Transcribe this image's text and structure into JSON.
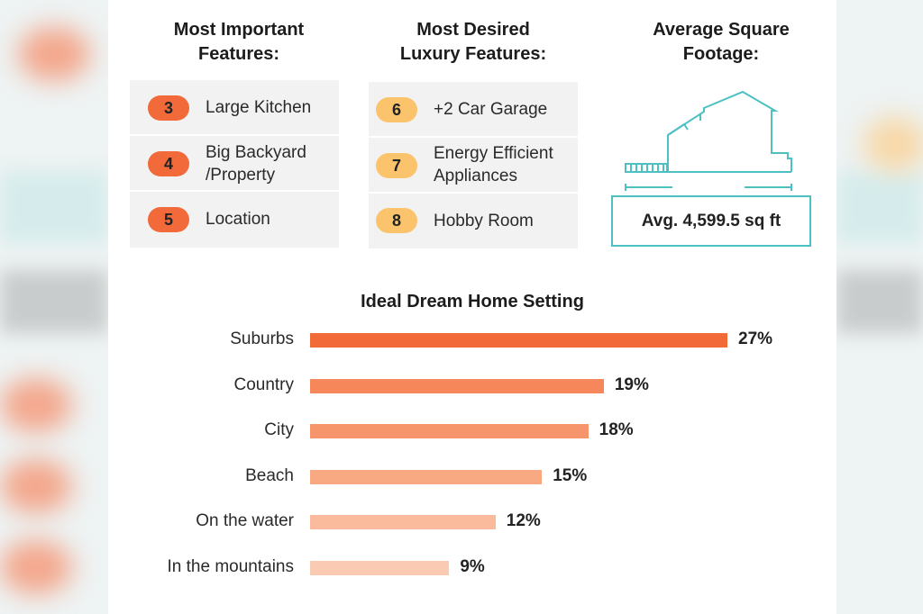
{
  "important": {
    "title_line1": "Most Important",
    "title_line2": "Features:",
    "items": [
      {
        "rank": "3",
        "label_line1": "Large Kitchen",
        "label_line2": ""
      },
      {
        "rank": "4",
        "label_line1": "Big Backyard",
        "label_line2": "/Property"
      },
      {
        "rank": "5",
        "label_line1": "Location",
        "label_line2": ""
      }
    ],
    "pill_color": "#f26a3a"
  },
  "luxury": {
    "title_line1": "Most Desired",
    "title_line2": "Luxury Features:",
    "items": [
      {
        "rank": "6",
        "label_line1": "+2 Car Garage",
        "label_line2": ""
      },
      {
        "rank": "7",
        "label_line1": "Energy Efficient",
        "label_line2": "Appliances"
      },
      {
        "rank": "8",
        "label_line1": "Hobby Room",
        "label_line2": ""
      }
    ],
    "pill_color": "#fbc46c"
  },
  "footage": {
    "title_line1": "Average Square",
    "title_line2": "Footage:",
    "value": "Avg. 4,599.5 sq ft",
    "accent": "#4cc0c3"
  },
  "chart_data": {
    "type": "bar",
    "orientation": "horizontal",
    "title": "Ideal Dream Home Setting",
    "categories": [
      "Suburbs",
      "Country",
      "City",
      "Beach",
      "On the water",
      "In the mountains"
    ],
    "values": [
      27,
      19,
      18,
      15,
      12,
      9
    ],
    "value_labels": [
      "27%",
      "19%",
      "18%",
      "15%",
      "12%",
      "9%"
    ],
    "unit": "%",
    "colors": [
      "#f26a38",
      "#f5875a",
      "#f6956c",
      "#f8a982",
      "#f9bb9b",
      "#fbcab2"
    ],
    "grid": false,
    "legend": "none"
  }
}
